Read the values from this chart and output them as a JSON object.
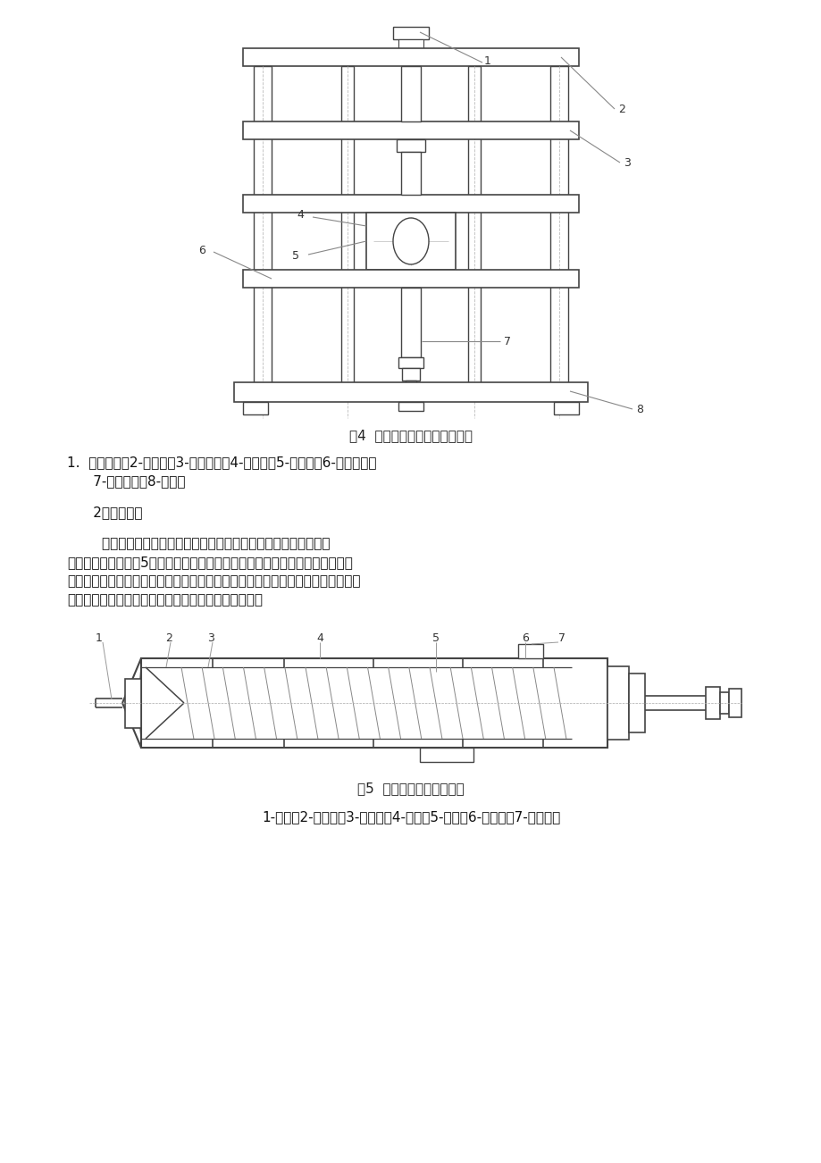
{
  "bg_color": "#ffffff",
  "fig4_caption": "图4  立式注塑机注射装置示意图",
  "text1_line1": "1.  液压马达；2-推力座；3-注射油缸；4-注射座；5-加料口；6-座移油缸；",
  "text1_line2": "      7-塑化部件；8-上范本",
  "text2_heading": "      2．塑化部件",
  "text3_para1": "        塑化部件有柱塞式和螺杆式两种，下面就对螺杆式做一下介绍。",
  "text3_para2": "螺杆式塑化部件如图5所示，主要由螺杆、料筒、喷嘴等组成，塑料在旋转螺杆",
  "text3_para3": "的连续推进过程中，实现物理状态的变化，最后呈熔融状态而被注入模腔。因此，",
  "text3_para4": "塑化部件是完成均匀塑化，实现定量注射的核心部件。",
  "fig5_caption": "图5  螺杆式塑化部件结构图",
  "fig5_labels_text": "1-喷嘴；2-螺杆头；3-止逆环；4-料筒；5-螺杆；6-加热圈；7-冷却水圈",
  "line_color": "#444444",
  "text_color": "#111111",
  "caption_color": "#222222",
  "label_color": "#333333"
}
